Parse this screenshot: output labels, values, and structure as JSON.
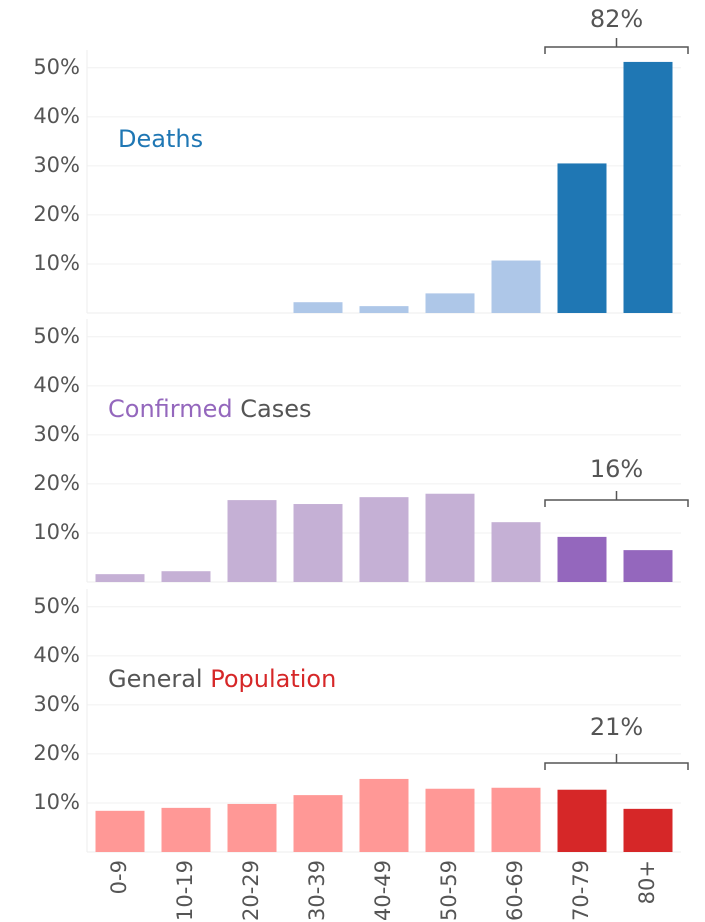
{
  "chart_data": [
    {
      "type": "bar",
      "title": [
        {
          "text": "Deaths",
          "color": "#1f77b4"
        }
      ],
      "values": [
        0,
        0,
        0,
        2.2,
        1.4,
        4.0,
        10.7,
        30.5,
        51.2
      ],
      "colors": [
        "#aec7e8",
        "#aec7e8",
        "#aec7e8",
        "#aec7e8",
        "#aec7e8",
        "#aec7e8",
        "#aec7e8",
        "#1f77b4",
        "#1f77b4"
      ],
      "ylim": [
        0,
        52
      ],
      "yticks": [
        {
          "value": 10,
          "label": "10%"
        },
        {
          "value": 20,
          "label": "20%"
        },
        {
          "value": 30,
          "label": "30%"
        },
        {
          "value": 40,
          "label": "40%"
        },
        {
          "value": 50,
          "label": "50%"
        }
      ],
      "grid": true,
      "annotation": "82%"
    },
    {
      "type": "bar",
      "title": [
        {
          "text": "Confirmed",
          "color": "#9467bd"
        },
        {
          "text": " Cases",
          "color": "#555555"
        }
      ],
      "values": [
        1.6,
        2.2,
        16.7,
        15.9,
        17.3,
        18.0,
        12.2,
        9.2,
        6.5
      ],
      "colors": [
        "#c5b0d5",
        "#c5b0d5",
        "#c5b0d5",
        "#c5b0d5",
        "#c5b0d5",
        "#c5b0d5",
        "#c5b0d5",
        "#9467bd",
        "#9467bd"
      ],
      "ylim": [
        0,
        52
      ],
      "yticks": [
        {
          "value": 10,
          "label": "10%"
        },
        {
          "value": 20,
          "label": "20%"
        },
        {
          "value": 30,
          "label": "30%"
        },
        {
          "value": 40,
          "label": "40%"
        },
        {
          "value": 50,
          "label": "50%"
        }
      ],
      "grid": true,
      "annotation": "16%"
    },
    {
      "type": "bar",
      "title": [
        {
          "text": "General",
          "color": "#555555"
        },
        {
          "text": " Population",
          "color": "#d62728"
        }
      ],
      "categories": [
        "0-9",
        "10-19",
        "20-29",
        "30-39",
        "40-49",
        "50-59",
        "60-69",
        "70-79",
        "80+"
      ],
      "values": [
        8.4,
        9.0,
        9.8,
        11.6,
        14.9,
        12.9,
        13.1,
        12.7,
        8.8
      ],
      "colors": [
        "#ff9896",
        "#ff9896",
        "#ff9896",
        "#ff9896",
        "#ff9896",
        "#ff9896",
        "#ff9896",
        "#d62728",
        "#d62728"
      ],
      "ylim": [
        0,
        52
      ],
      "yticks": [
        {
          "value": 10,
          "label": "10%"
        },
        {
          "value": 20,
          "label": "20%"
        },
        {
          "value": 30,
          "label": "30%"
        },
        {
          "value": 40,
          "label": "40%"
        },
        {
          "value": 50,
          "label": "50%"
        }
      ],
      "grid": true,
      "annotation": "21%"
    }
  ]
}
